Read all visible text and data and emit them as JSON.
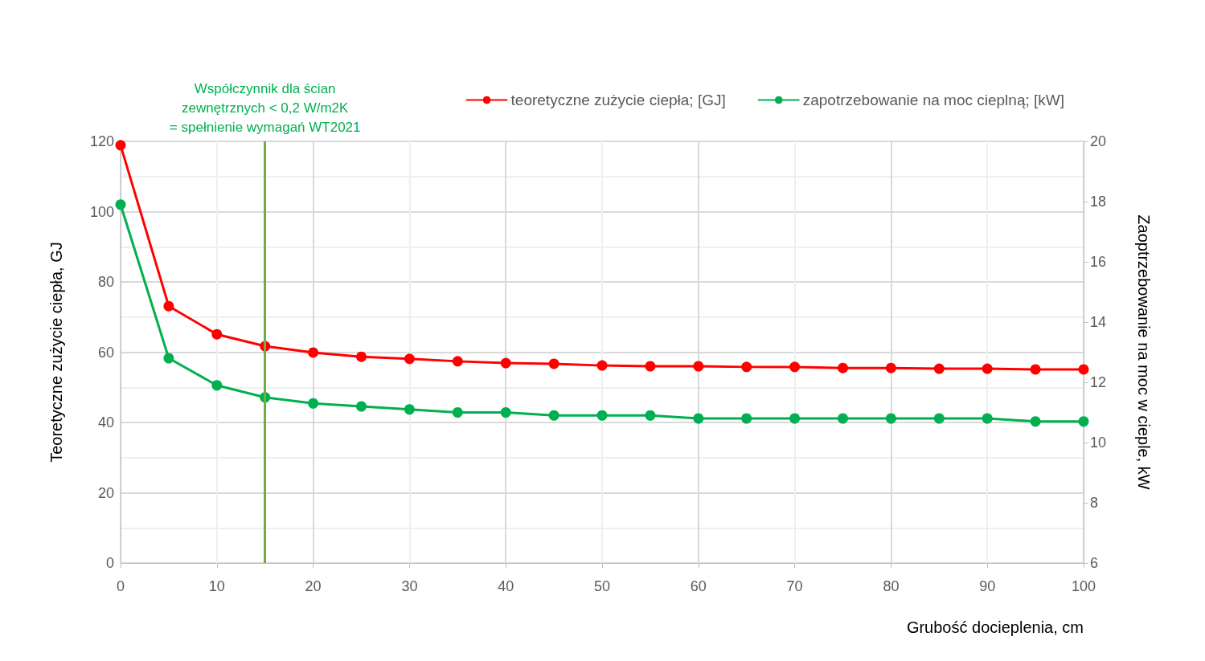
{
  "chart_data": {
    "type": "line",
    "x": [
      0,
      5,
      10,
      15,
      20,
      25,
      30,
      35,
      40,
      45,
      50,
      55,
      60,
      65,
      70,
      75,
      80,
      85,
      90,
      95,
      100
    ],
    "series": [
      {
        "name": "teoretyczne zużycie ciepła; [GJ]",
        "color": "#ff0000",
        "values": [
          118.9,
          73.1,
          65.1,
          61.7,
          59.9,
          58.7,
          58.1,
          57.4,
          56.9,
          56.7,
          56.2,
          56.0,
          56.0,
          55.8,
          55.8,
          55.5,
          55.5,
          55.3,
          55.3,
          55.1,
          55.1
        ]
      },
      {
        "name": "zapotrzebowanie na moc cieplną; [kW]",
        "color": "#00b050",
        "axis": "y2",
        "values": [
          17.9,
          12.8,
          11.9,
          11.5,
          11.3,
          11.2,
          11.1,
          11.0,
          11.0,
          10.9,
          10.9,
          10.9,
          10.8,
          10.8,
          10.8,
          10.8,
          10.8,
          10.8,
          10.8,
          10.7,
          10.7
        ]
      }
    ],
    "xlabel": "Grubość docieplenia, cm",
    "ylabel": "Teoretyczne zużycie ciepła, GJ",
    "y2label": "Zaoptrzebowanie na moc w cieple, kW",
    "xlim": [
      0,
      100
    ],
    "xticks": [
      0,
      10,
      20,
      30,
      40,
      50,
      60,
      70,
      80,
      90,
      100
    ],
    "ylim": [
      0,
      120
    ],
    "yticks": [
      0,
      20,
      40,
      60,
      80,
      100,
      120
    ],
    "y2lim": [
      6,
      20
    ],
    "y2ticks": [
      6,
      8,
      10,
      12,
      14,
      16,
      18,
      20
    ],
    "ref_lines": [
      {
        "axis": "x",
        "value": 15,
        "label": "Współczynnik dla ścian\nzewnętrznych < 0,2 W/m2K\n= spełnienie wymagań WT2021",
        "color": "#70ad47"
      }
    ],
    "grid": true,
    "legend": "top right",
    "marker": "circle",
    "line_style": "solid"
  }
}
